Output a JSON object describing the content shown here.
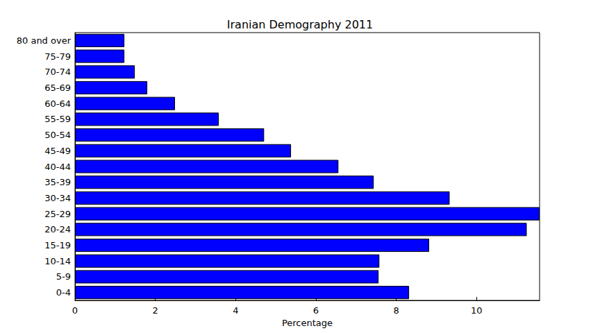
{
  "chart_data": {
    "type": "bar",
    "orientation": "horizontal",
    "title": "Iranian Demography 2011",
    "x_label": "Percentage",
    "categories": [
      "0-4",
      "5-9",
      "10-14",
      "15-19",
      "20-24",
      "25-29",
      "30-34",
      "35-39",
      "40-44",
      "45-49",
      "50-54",
      "55-59",
      "60-64",
      "65-69",
      "70-74",
      "75-79",
      "80 and over"
    ],
    "values": [
      8.32,
      7.56,
      7.58,
      8.82,
      11.25,
      11.57,
      9.33,
      7.44,
      6.56,
      5.38,
      4.71,
      3.58,
      2.49,
      1.8,
      1.49,
      1.23,
      1.23
    ],
    "color": "#0000ff",
    "xlim": [
      0,
      11.57
    ],
    "xticks": [
      0,
      2,
      4,
      6,
      8,
      10
    ],
    "grid": false
  }
}
